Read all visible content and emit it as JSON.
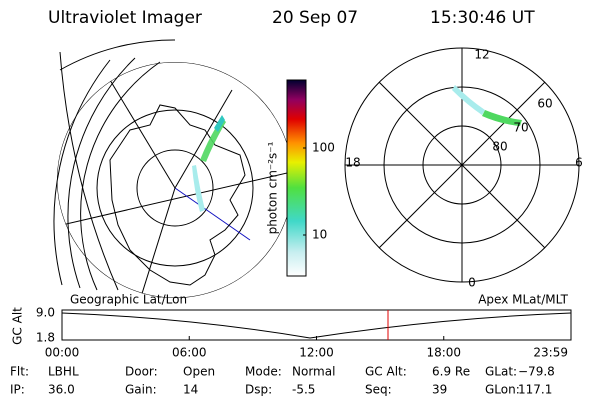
{
  "header": {
    "title": "Ultraviolet Imager",
    "date": "20 Sep 07",
    "time": "15:30:46 UT"
  },
  "colorbar": {
    "unit": "photon cm⁻²s⁻¹",
    "ticks": [
      "100",
      "10"
    ]
  },
  "polar_plot": {
    "mlt_labels": [
      "12",
      "18",
      "6",
      "0"
    ],
    "lat_labels": [
      "60",
      "70",
      "80"
    ]
  },
  "timeline": {
    "left_title": "Geographic Lat/Lon",
    "right_title": "Apex MLat/MLT",
    "axis_title": "GC Alt",
    "y_labels": [
      "9.0",
      "1.8"
    ],
    "x_labels": [
      "00:00",
      "06:00",
      "12:00",
      "18:00",
      "23:59"
    ]
  },
  "footer": {
    "rows": [
      [
        {
          "label": "Flt:",
          "value": "LBHL"
        },
        {
          "label": "Door:",
          "value": "Open"
        },
        {
          "label": "Mode:",
          "value": "Normal"
        },
        {
          "label": "GC Alt:",
          "value": "6.9 Re"
        },
        {
          "label": "GLat:",
          "value": "−79.8"
        }
      ],
      [
        {
          "label": "IP:",
          "value": "36.0"
        },
        {
          "label": "Gain:",
          "value": "14"
        },
        {
          "label": "Dsp:",
          "value": "-5.5"
        },
        {
          "label": "Seq:",
          "value": "39"
        },
        {
          "label": "GLon:",
          "value": "117.1"
        }
      ]
    ]
  }
}
